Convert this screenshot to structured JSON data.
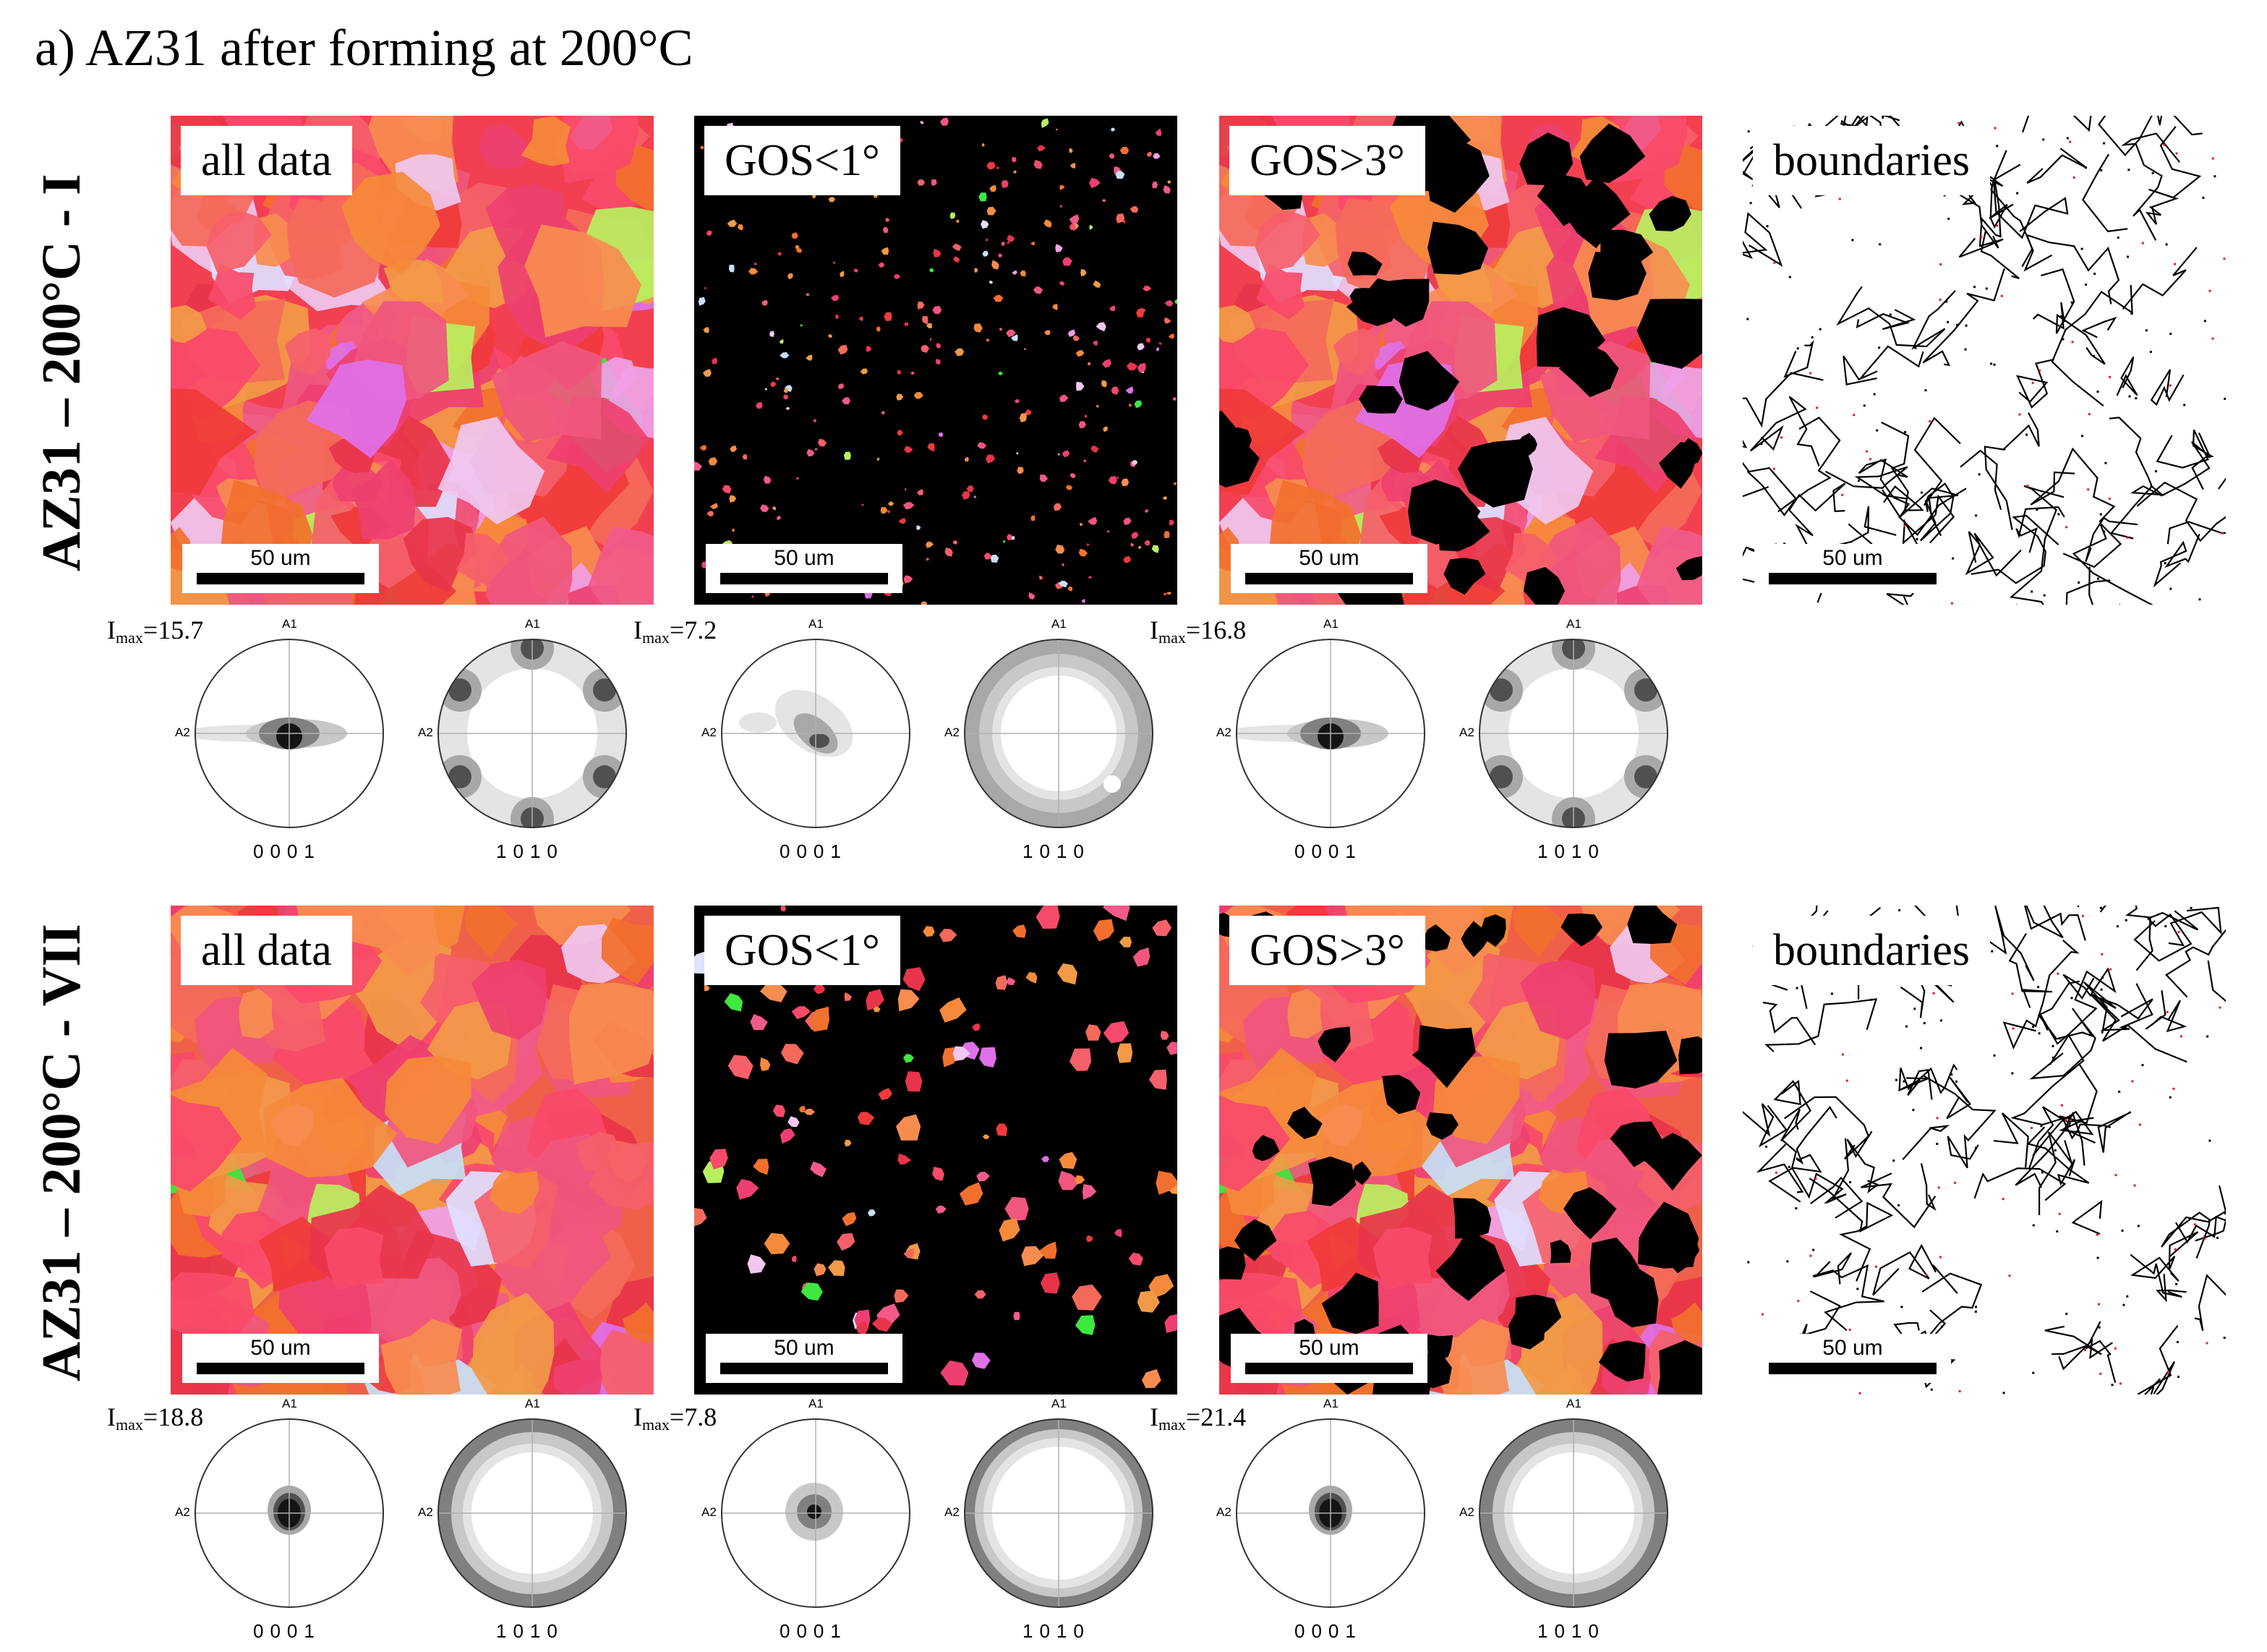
{
  "figure": {
    "title": "a) AZ31 after forming  at 200°C",
    "rows": [
      {
        "label": "AZ31 – 200°C - I",
        "maps": [
          {
            "tag": "all data",
            "scale": "50 um"
          },
          {
            "tag": "GOS<1°",
            "scale": "50 um"
          },
          {
            "tag": "GOS>3°",
            "scale": "50 um"
          },
          {
            "tag": "boundaries",
            "scale": "50 um"
          }
        ],
        "pole_figure_sets": [
          {
            "imax_prefix": "I",
            "imax_sub": "max",
            "imax_value": "=15.7",
            "basal_label": "0001",
            "prism_label": "1010",
            "axis_a1": "A1",
            "axis_a2": "A2"
          },
          {
            "imax_prefix": "I",
            "imax_sub": "max",
            "imax_value": "=7.2",
            "basal_label": "0001",
            "prism_label": "1010",
            "axis_a1": "A1",
            "axis_a2": "A2"
          },
          {
            "imax_prefix": "I",
            "imax_sub": "max",
            "imax_value": "=16.8",
            "basal_label": "0001",
            "prism_label": "1010",
            "axis_a1": "A1",
            "axis_a2": "A2"
          }
        ]
      },
      {
        "label": "AZ31 – 200°C - VII",
        "maps": [
          {
            "tag": "all data",
            "scale": "50 um"
          },
          {
            "tag": "GOS<1°",
            "scale": "50 um"
          },
          {
            "tag": "GOS>3°",
            "scale": "50 um"
          },
          {
            "tag": "boundaries",
            "scale": "50 um"
          }
        ],
        "pole_figure_sets": [
          {
            "imax_prefix": "I",
            "imax_sub": "max",
            "imax_value": "=18.8",
            "basal_label": "0001",
            "prism_label": "1010",
            "axis_a1": "A1",
            "axis_a2": "A2"
          },
          {
            "imax_prefix": "I",
            "imax_sub": "max",
            "imax_value": "=7.8",
            "basal_label": "0001",
            "prism_label": "1010",
            "axis_a1": "A1",
            "axis_a2": "A2"
          },
          {
            "imax_prefix": "I",
            "imax_sub": "max",
            "imax_value": "=21.4",
            "basal_label": "0001",
            "prism_label": "1010",
            "axis_a1": "A1",
            "axis_a2": "A2"
          }
        ]
      }
    ],
    "colors": {
      "ipf_red": "#f03a3a",
      "ipf_pink": "#f25a8a",
      "ipf_orange": "#f58a3a",
      "ipf_green": "#3ee83e",
      "ipf_magenta": "#e070e8",
      "background_black": "#000000",
      "boundary_line": "#000000"
    }
  }
}
